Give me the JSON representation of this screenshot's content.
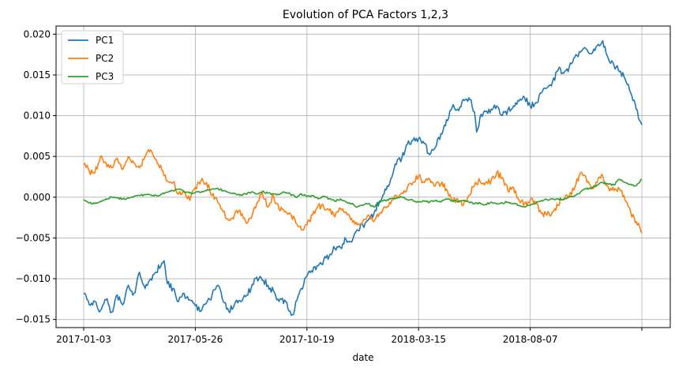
{
  "chart_data": {
    "type": "line",
    "title": "Evolution of PCA Factors 1,2,3",
    "xlabel": "date",
    "ylabel": "",
    "x_tick_labels": [
      "2017-01-03",
      "2017-05-26",
      "2017-10-19",
      "2018-03-15",
      "2018-08-07",
      ""
    ],
    "x_range_index": [
      0,
      500
    ],
    "x_tick_index": [
      0,
      100,
      200,
      300,
      400,
      500
    ],
    "ylim": [
      -0.016,
      0.021
    ],
    "y_ticks": [
      -0.015,
      -0.01,
      -0.005,
      0.0,
      0.005,
      0.01,
      0.015,
      0.02
    ],
    "y_tick_labels": [
      "−0.015",
      "−0.010",
      "−0.005",
      "0.000",
      "0.005",
      "0.010",
      "0.015",
      "0.020"
    ],
    "grid": true,
    "legend_position": "top-left",
    "series": [
      {
        "name": "PC1",
        "color": "#1f77b4",
        "anchors": [
          [
            0,
            -0.0118
          ],
          [
            5,
            -0.0132
          ],
          [
            10,
            -0.0128
          ],
          [
            15,
            -0.0139
          ],
          [
            20,
            -0.0126
          ],
          [
            25,
            -0.0141
          ],
          [
            30,
            -0.012
          ],
          [
            35,
            -0.0132
          ],
          [
            40,
            -0.0108
          ],
          [
            45,
            -0.0118
          ],
          [
            50,
            -0.0092
          ],
          [
            55,
            -0.0112
          ],
          [
            60,
            -0.01
          ],
          [
            65,
            -0.0092
          ],
          [
            70,
            -0.0081
          ],
          [
            72,
            -0.0078
          ],
          [
            75,
            -0.0106
          ],
          [
            80,
            -0.0112
          ],
          [
            85,
            -0.0128
          ],
          [
            90,
            -0.0118
          ],
          [
            95,
            -0.0126
          ],
          [
            100,
            -0.0133
          ],
          [
            105,
            -0.014
          ],
          [
            110,
            -0.013
          ],
          [
            115,
            -0.012
          ],
          [
            120,
            -0.0108
          ],
          [
            125,
            -0.0128
          ],
          [
            130,
            -0.014
          ],
          [
            135,
            -0.0132
          ],
          [
            140,
            -0.0127
          ],
          [
            145,
            -0.0122
          ],
          [
            150,
            -0.0112
          ],
          [
            155,
            -0.0098
          ],
          [
            160,
            -0.0102
          ],
          [
            165,
            -0.0108
          ],
          [
            170,
            -0.0115
          ],
          [
            175,
            -0.0128
          ],
          [
            180,
            -0.0126
          ],
          [
            185,
            -0.014
          ],
          [
            188,
            -0.0144
          ],
          [
            190,
            -0.0128
          ],
          [
            195,
            -0.0112
          ],
          [
            200,
            -0.0097
          ],
          [
            205,
            -0.0092
          ],
          [
            210,
            -0.0084
          ],
          [
            215,
            -0.0077
          ],
          [
            220,
            -0.0072
          ],
          [
            225,
            -0.0063
          ],
          [
            230,
            -0.0062
          ],
          [
            235,
            -0.0052
          ],
          [
            240,
            -0.0055
          ],
          [
            245,
            -0.004
          ],
          [
            250,
            -0.0034
          ],
          [
            255,
            -0.0028
          ],
          [
            260,
            -0.002
          ],
          [
            265,
            -0.0005
          ],
          [
            270,
            0.001
          ],
          [
            275,
            0.0022
          ],
          [
            280,
            0.004
          ],
          [
            285,
            0.0048
          ],
          [
            290,
            0.0065
          ],
          [
            295,
            0.007
          ],
          [
            300,
            0.0072
          ],
          [
            305,
            0.0066
          ],
          [
            310,
            0.0052
          ],
          [
            315,
            0.0061
          ],
          [
            320,
            0.0078
          ],
          [
            325,
            0.0095
          ],
          [
            330,
            0.011
          ],
          [
            335,
            0.0108
          ],
          [
            340,
            0.012
          ],
          [
            345,
            0.0122
          ],
          [
            350,
            0.0105
          ],
          [
            352,
            0.008
          ],
          [
            355,
            0.0098
          ],
          [
            360,
            0.0105
          ],
          [
            365,
            0.0108
          ],
          [
            370,
            0.0112
          ],
          [
            375,
            0.01
          ],
          [
            380,
            0.0107
          ],
          [
            385,
            0.0112
          ],
          [
            390,
            0.0118
          ],
          [
            395,
            0.0122
          ],
          [
            400,
            0.0112
          ],
          [
            405,
            0.0116
          ],
          [
            410,
            0.0128
          ],
          [
            415,
            0.0134
          ],
          [
            420,
            0.0142
          ],
          [
            425,
            0.0156
          ],
          [
            430,
            0.0152
          ],
          [
            435,
            0.016
          ],
          [
            440,
            0.0172
          ],
          [
            445,
            0.0178
          ],
          [
            450,
            0.0182
          ],
          [
            455,
            0.0176
          ],
          [
            460,
            0.0186
          ],
          [
            465,
            0.0192
          ],
          [
            470,
            0.017
          ],
          [
            475,
            0.0162
          ],
          [
            480,
            0.0154
          ],
          [
            485,
            0.0145
          ],
          [
            490,
            0.0128
          ],
          [
            495,
            0.0108
          ],
          [
            500,
            0.0089
          ]
        ]
      },
      {
        "name": "PC2",
        "color": "#ff7f0e",
        "anchors": [
          [
            0,
            0.004
          ],
          [
            5,
            0.0032
          ],
          [
            10,
            0.003
          ],
          [
            15,
            0.005
          ],
          [
            20,
            0.0042
          ],
          [
            25,
            0.0036
          ],
          [
            30,
            0.0048
          ],
          [
            35,
            0.0034
          ],
          [
            40,
            0.005
          ],
          [
            45,
            0.0042
          ],
          [
            50,
            0.0036
          ],
          [
            55,
            0.005
          ],
          [
            60,
            0.0058
          ],
          [
            65,
            0.0046
          ],
          [
            70,
            0.0033
          ],
          [
            75,
            0.002
          ],
          [
            80,
            0.0018
          ],
          [
            85,
            0.0004
          ],
          [
            90,
            0.0006
          ],
          [
            95,
            -0.0004
          ],
          [
            100,
            0.0012
          ],
          [
            105,
            0.002
          ],
          [
            110,
            0.0018
          ],
          [
            115,
            0.0002
          ],
          [
            120,
            -0.0006
          ],
          [
            125,
            -0.0018
          ],
          [
            130,
            -0.0028
          ],
          [
            135,
            -0.0022
          ],
          [
            140,
            -0.0016
          ],
          [
            145,
            -0.003
          ],
          [
            150,
            -0.0026
          ],
          [
            155,
            -0.0008
          ],
          [
            160,
            0.0006
          ],
          [
            165,
            -0.0012
          ],
          [
            170,
            0.0002
          ],
          [
            175,
            -0.0015
          ],
          [
            180,
            -0.0018
          ],
          [
            185,
            -0.002
          ],
          [
            190,
            -0.0032
          ],
          [
            195,
            -0.004
          ],
          [
            200,
            -0.0034
          ],
          [
            205,
            -0.0022
          ],
          [
            210,
            -0.001
          ],
          [
            215,
            -0.0012
          ],
          [
            220,
            -0.0016
          ],
          [
            225,
            -0.0024
          ],
          [
            230,
            -0.0014
          ],
          [
            235,
            -0.0018
          ],
          [
            240,
            -0.0026
          ],
          [
            245,
            -0.0034
          ],
          [
            250,
            -0.003
          ],
          [
            255,
            -0.0022
          ],
          [
            260,
            -0.003
          ],
          [
            265,
            -0.002
          ],
          [
            270,
            -0.0012
          ],
          [
            275,
            -0.0008
          ],
          [
            280,
            0.0002
          ],
          [
            285,
            0.0005
          ],
          [
            290,
            0.0012
          ],
          [
            295,
            0.0018
          ],
          [
            300,
            0.0026
          ],
          [
            305,
            0.0018
          ],
          [
            310,
            0.0022
          ],
          [
            315,
            0.0014
          ],
          [
            320,
            0.0016
          ],
          [
            325,
            0.001
          ],
          [
            330,
            -0.0004
          ],
          [
            335,
            -0.0002
          ],
          [
            340,
            -0.001
          ],
          [
            345,
            0.0002
          ],
          [
            350,
            0.0014
          ],
          [
            355,
            0.002
          ],
          [
            360,
            0.0018
          ],
          [
            365,
            0.002
          ],
          [
            370,
            0.003
          ],
          [
            375,
            0.0024
          ],
          [
            380,
            0.0008
          ],
          [
            385,
            0.0012
          ],
          [
            390,
            -0.0004
          ],
          [
            395,
            -0.0008
          ],
          [
            400,
            -0.0004
          ],
          [
            405,
            -0.0008
          ],
          [
            410,
            -0.002
          ],
          [
            415,
            -0.0022
          ],
          [
            420,
            -0.0018
          ],
          [
            425,
            -0.001
          ],
          [
            430,
            -0.0002
          ],
          [
            435,
            0.0002
          ],
          [
            440,
            0.0012
          ],
          [
            445,
            0.003
          ],
          [
            450,
            0.0024
          ],
          [
            455,
            0.001
          ],
          [
            460,
            0.0018
          ],
          [
            465,
            0.0026
          ],
          [
            470,
            0.0012
          ],
          [
            475,
            0.0008
          ],
          [
            480,
            0.001
          ],
          [
            485,
            -0.0004
          ],
          [
            490,
            -0.0018
          ],
          [
            495,
            -0.003
          ],
          [
            500,
            -0.0044
          ]
        ]
      },
      {
        "name": "PC3",
        "color": "#2ca02c",
        "anchors": [
          [
            0,
            -0.0003
          ],
          [
            5,
            -0.0007
          ],
          [
            10,
            -0.0008
          ],
          [
            15,
            -0.0005
          ],
          [
            20,
            -0.0002
          ],
          [
            25,
            0.0
          ],
          [
            30,
            -0.0001
          ],
          [
            35,
            -0.0002
          ],
          [
            40,
            -0.0001
          ],
          [
            45,
            0.0001
          ],
          [
            50,
            0.0002
          ],
          [
            55,
            0.0003
          ],
          [
            60,
            0.0003
          ],
          [
            65,
            0.0002
          ],
          [
            70,
            0.0004
          ],
          [
            75,
            0.0006
          ],
          [
            80,
            0.0008
          ],
          [
            85,
            0.001
          ],
          [
            90,
            0.0007
          ],
          [
            95,
            0.0005
          ],
          [
            100,
            0.0006
          ],
          [
            105,
            0.0006
          ],
          [
            110,
            0.0008
          ],
          [
            115,
            0.001
          ],
          [
            120,
            0.0011
          ],
          [
            125,
            0.0008
          ],
          [
            130,
            0.0006
          ],
          [
            135,
            0.0005
          ],
          [
            140,
            0.0002
          ],
          [
            145,
            0.0004
          ],
          [
            150,
            0.0006
          ],
          [
            155,
            0.0004
          ],
          [
            160,
            0.0007
          ],
          [
            165,
            0.0005
          ],
          [
            170,
            0.0004
          ],
          [
            175,
            0.0003
          ],
          [
            180,
            0.0006
          ],
          [
            185,
            0.0004
          ],
          [
            190,
            0.0
          ],
          [
            195,
            0.0004
          ],
          [
            200,
            0.0001
          ],
          [
            205,
            0.0002
          ],
          [
            210,
            -0.0002
          ],
          [
            215,
            0.0001
          ],
          [
            220,
            -0.0002
          ],
          [
            225,
            -0.0005
          ],
          [
            230,
            -0.0002
          ],
          [
            235,
            -0.0006
          ],
          [
            240,
            -0.0008
          ],
          [
            245,
            -0.0012
          ],
          [
            250,
            -0.001
          ],
          [
            255,
            -0.0008
          ],
          [
            260,
            -0.0012
          ],
          [
            265,
            -0.0005
          ],
          [
            270,
            -0.0004
          ],
          [
            275,
            -0.0002
          ],
          [
            280,
            -0.0001
          ],
          [
            285,
            0.0
          ],
          [
            290,
            -0.0003
          ],
          [
            295,
            -0.0004
          ],
          [
            300,
            -0.0006
          ],
          [
            305,
            -0.0005
          ],
          [
            310,
            -0.0006
          ],
          [
            315,
            -0.0004
          ],
          [
            320,
            -0.0006
          ],
          [
            325,
            -0.0002
          ],
          [
            330,
            -0.0004
          ],
          [
            335,
            -0.0006
          ],
          [
            340,
            -0.0004
          ],
          [
            345,
            -0.0006
          ],
          [
            350,
            -0.0008
          ],
          [
            355,
            -0.0007
          ],
          [
            360,
            -0.0009
          ],
          [
            365,
            -0.0006
          ],
          [
            370,
            -0.0008
          ],
          [
            375,
            -0.0007
          ],
          [
            380,
            -0.0006
          ],
          [
            385,
            -0.0008
          ],
          [
            390,
            -0.001
          ],
          [
            395,
            -0.0012
          ],
          [
            400,
            -0.001
          ],
          [
            405,
            -0.0007
          ],
          [
            410,
            -0.0004
          ],
          [
            415,
            -0.0003
          ],
          [
            420,
            -0.0002
          ],
          [
            425,
            -0.0002
          ],
          [
            430,
            -0.0003
          ],
          [
            435,
            0.0
          ],
          [
            440,
            0.0002
          ],
          [
            445,
            0.0006
          ],
          [
            450,
            0.001
          ],
          [
            455,
            0.0012
          ],
          [
            460,
            0.0015
          ],
          [
            465,
            0.0018
          ],
          [
            470,
            0.0016
          ],
          [
            475,
            0.0015
          ],
          [
            480,
            0.0022
          ],
          [
            485,
            0.0018
          ],
          [
            490,
            0.0016
          ],
          [
            495,
            0.0014
          ],
          [
            500,
            0.0022
          ]
        ]
      }
    ]
  }
}
